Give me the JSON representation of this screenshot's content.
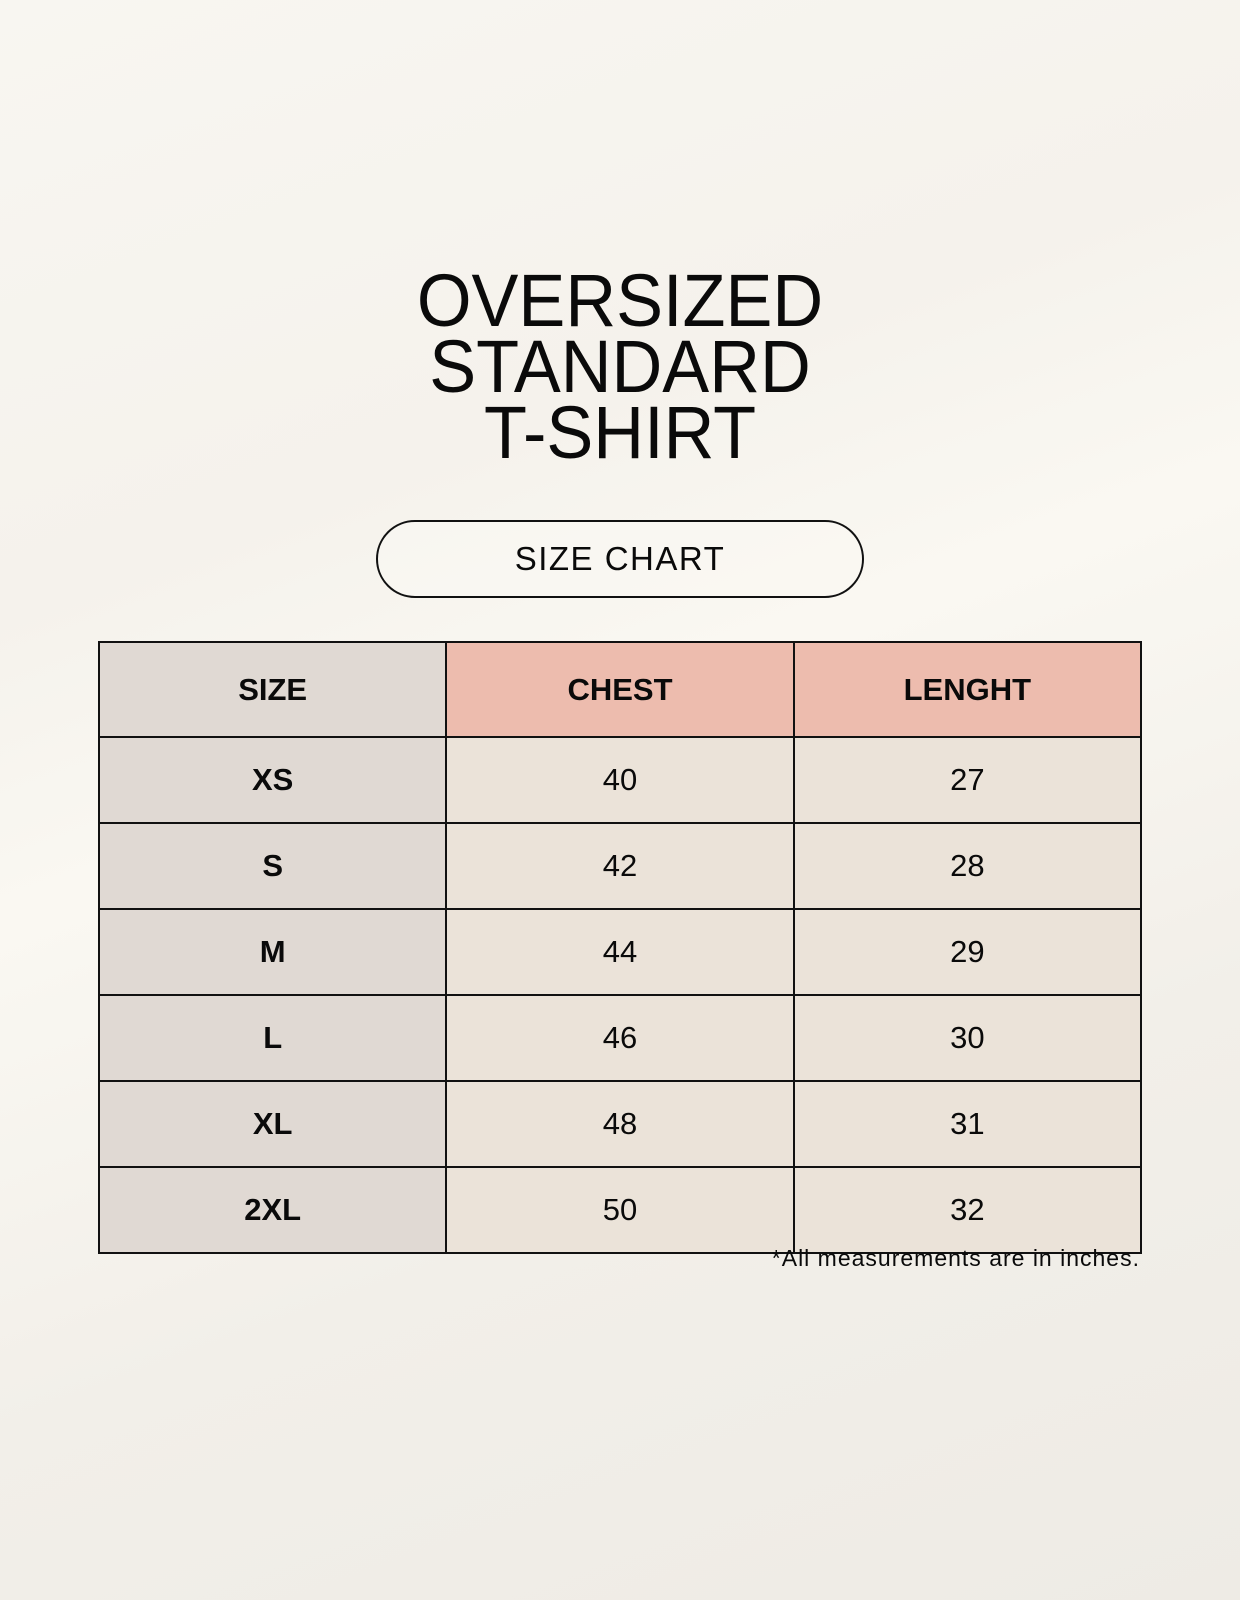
{
  "title_lines": [
    "OVERSIZED",
    "STANDARD",
    "T-SHIRT"
  ],
  "badge": "SIZE CHART",
  "table": {
    "headers": [
      "SIZE",
      "CHEST",
      "LENGHT"
    ],
    "rows": [
      [
        "XS",
        "40",
        "27"
      ],
      [
        "S",
        "42",
        "28"
      ],
      [
        "M",
        "44",
        "29"
      ],
      [
        "L",
        "46",
        "30"
      ],
      [
        "XL",
        "48",
        "31"
      ],
      [
        "2XL",
        "50",
        "32"
      ]
    ]
  },
  "footnote": "*All measurements are in inches.",
  "colors": {
    "size_column": "#e0d9d3",
    "header_accent": "#edbcae",
    "cell": "#ebe3d9"
  }
}
